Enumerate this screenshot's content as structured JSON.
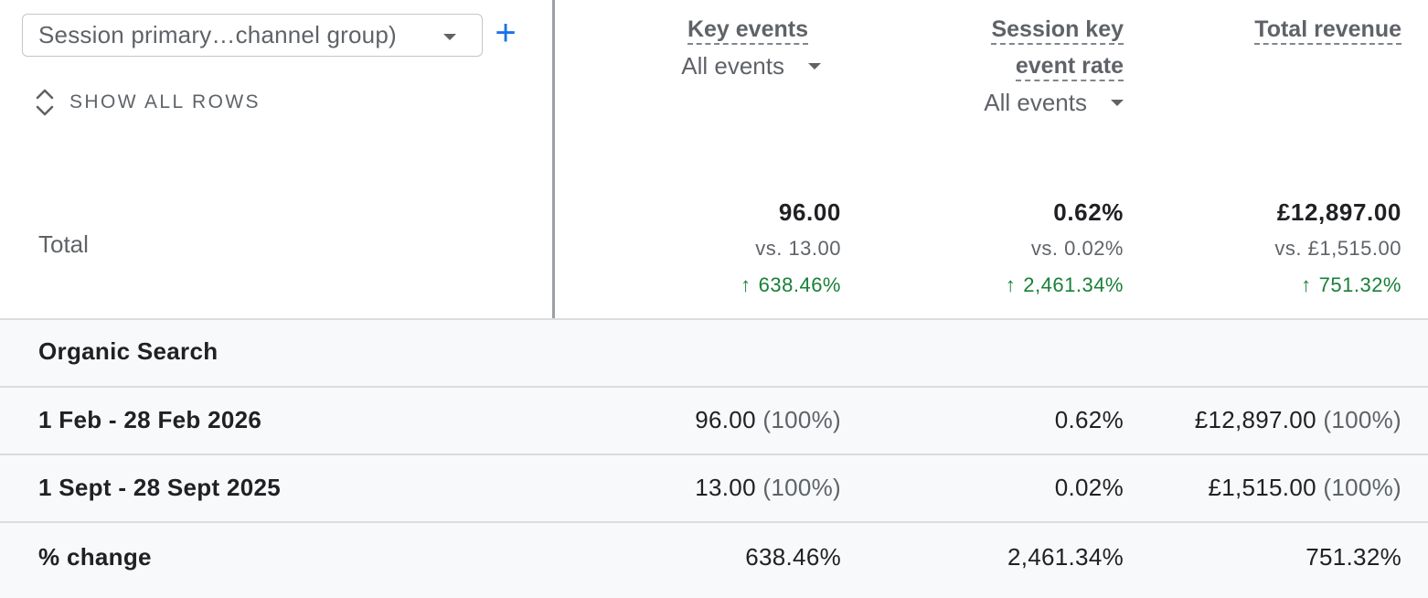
{
  "dimension_selector": {
    "label": "Session primary…channel group)"
  },
  "add_button": {
    "label": "+"
  },
  "show_all_rows": {
    "label": "SHOW ALL ROWS"
  },
  "columns": [
    {
      "title": "Key events",
      "event_filter": "All events"
    },
    {
      "title_line1": "Session key",
      "title_line2": "event rate",
      "event_filter": "All events"
    },
    {
      "title": "Total revenue"
    }
  ],
  "totals": {
    "label": "Total",
    "values": [
      {
        "value": "96.00",
        "comparison": "vs. 13.00",
        "change": "638.46%"
      },
      {
        "value": "0.62%",
        "comparison": "vs. 0.02%",
        "change": "2,461.34%"
      },
      {
        "value": "£12,897.00",
        "comparison": "vs. £1,515.00",
        "change": "751.32%"
      }
    ]
  },
  "rows": [
    {
      "label": "Organic Search"
    },
    {
      "label": "1 Feb - 28 Feb 2026",
      "cells": [
        {
          "value": "96.00",
          "share": "(100%)"
        },
        {
          "value": "0.62%"
        },
        {
          "value": "£12,897.00",
          "share": "(100%)"
        }
      ]
    },
    {
      "label": "1 Sept - 28 Sept 2025",
      "cells": [
        {
          "value": "13.00",
          "share": "(100%)"
        },
        {
          "value": "0.02%"
        },
        {
          "value": "£1,515.00",
          "share": "(100%)"
        }
      ]
    },
    {
      "label": "% change",
      "cells": [
        {
          "value": "638.46%"
        },
        {
          "value": "2,461.34%"
        },
        {
          "value": "751.32%"
        }
      ]
    }
  ],
  "colors": {
    "positive_change": "#188038",
    "accent": "#1a73e8",
    "row_background": "#f8f9fa"
  }
}
